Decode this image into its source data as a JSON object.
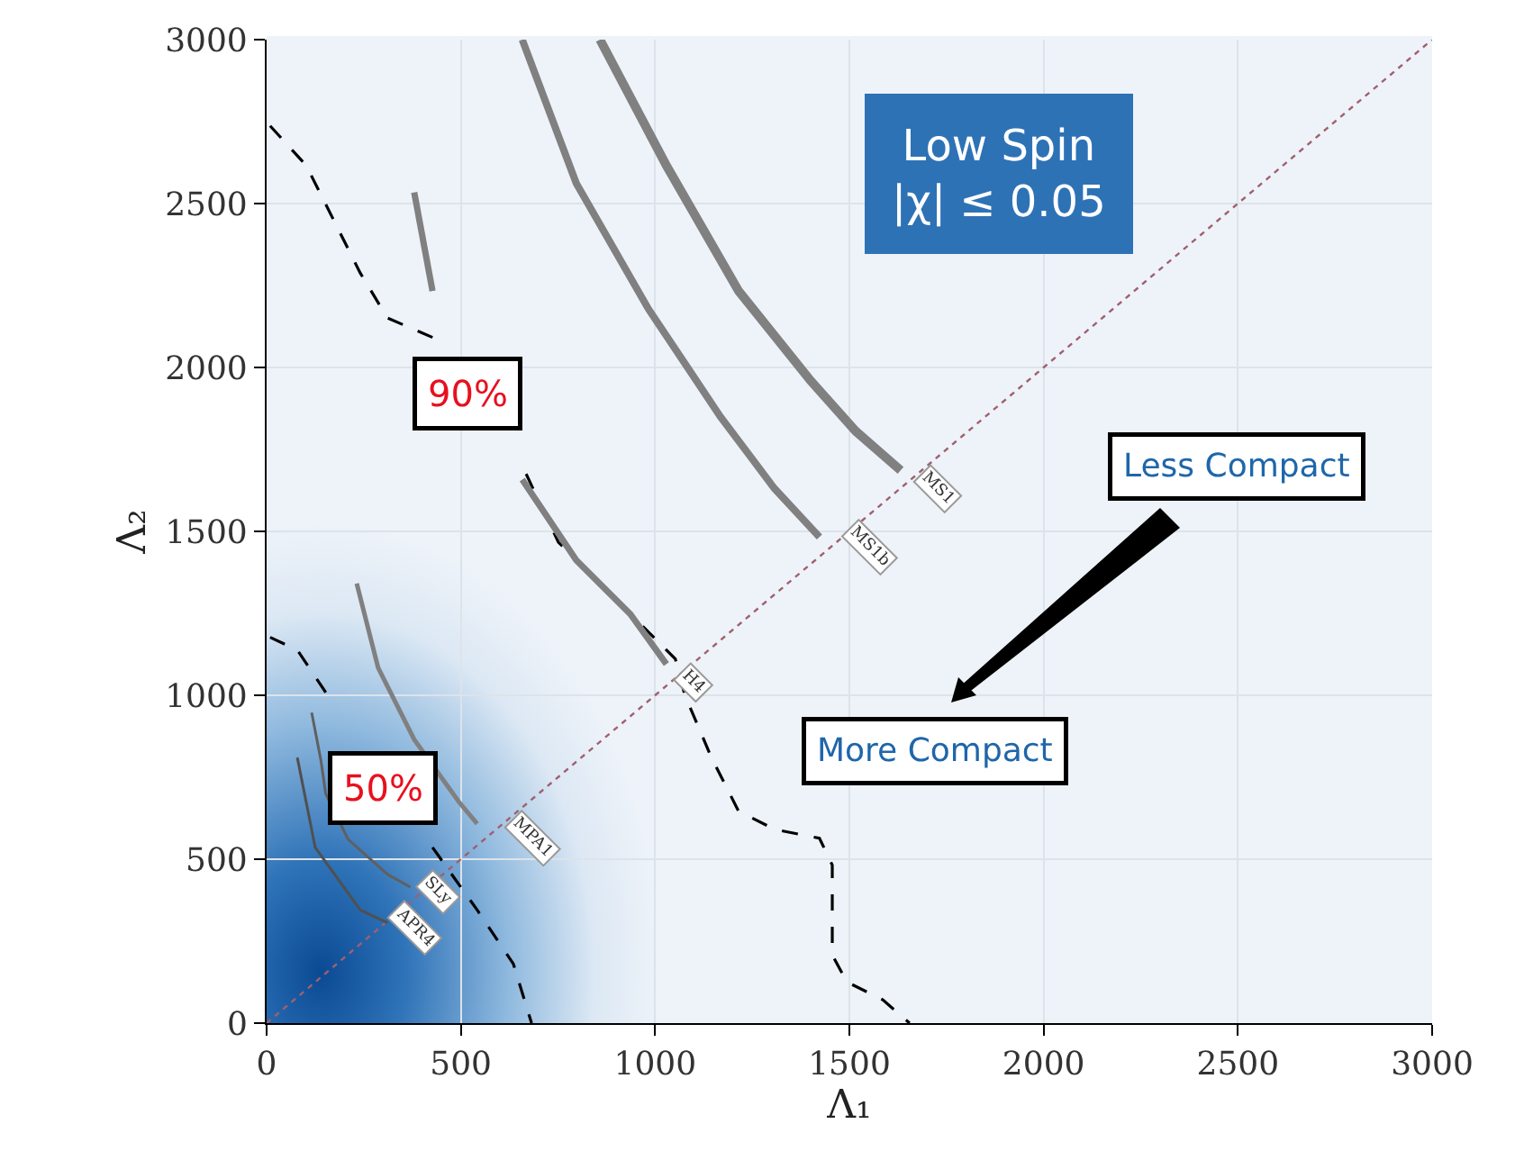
{
  "chart_data": {
    "type": "line",
    "xlabel": "Λ₁",
    "ylabel": "Λ₂",
    "xlim": [
      0,
      3000
    ],
    "ylim": [
      0,
      3000
    ],
    "xticks": [
      0,
      500,
      1000,
      1500,
      2000,
      2500,
      3000
    ],
    "yticks": [
      0,
      500,
      1000,
      1500,
      2000,
      2500,
      3000
    ],
    "grid": true,
    "marker": "none",
    "series": [
      {
        "color": "#a0606e",
        "line_style": "dotted",
        "x": [
          0,
          3000
        ],
        "values": [
          0,
          3000
        ]
      },
      {
        "color": "#000000",
        "line_style": "dashed",
        "x": [
          9,
          102,
          241,
          311,
          450,
          566,
          668,
          751,
          890,
          1052,
          1076,
          1145,
          1215,
          1308,
          1423,
          1456,
          1456,
          1493,
          1586,
          1655
        ],
        "values": [
          2737,
          2616,
          2288,
          2151,
          2080,
          null,
          1675,
          1467,
          1303,
          1111,
          1002,
          810,
          646,
          591,
          564,
          482,
          208,
          126,
          71,
          0
        ]
      },
      {
        "color": "#000000",
        "line_style": "dashed",
        "x": [
          9,
          79,
          172,
          300,
          427,
          542,
          635,
          682
        ],
        "values": [
          1177,
          1138,
          974,
          null,
          536,
          345,
          181,
          0
        ]
      },
      {
        "color": "#808080",
        "line_style": "solid",
        "x": [
          858,
          1029,
          1215,
          1400,
          1516,
          1632
        ],
        "values": [
          3000,
          2616,
          2233,
          1960,
          1806,
          1686
        ]
      },
      {
        "color": "#808080",
        "line_style": "solid",
        "x": [
          658,
          797,
          983,
          1168,
          1307,
          1423
        ],
        "values": [
          3000,
          2562,
          2178,
          1850,
          1631,
          1483
        ]
      },
      {
        "color": "#808080",
        "line_style": "solid",
        "x": [
          380,
          427,
          519,
          658,
          797,
          936,
          1029
        ],
        "values": [
          2534,
          2233,
          null,
          1658,
          1412,
          1248,
          1095
        ]
      },
      {
        "color": "#808080",
        "line_style": "solid",
        "x": [
          232,
          287,
          380,
          496,
          542
        ],
        "values": [
          1341,
          1084,
          865,
          673,
          608
        ]
      },
      {
        "color": "#606060",
        "line_style": "solid",
        "x": [
          116,
          140,
          152,
          210,
          311,
          370
        ],
        "values": [
          947,
          800,
          700,
          560,
          454,
          415
        ]
      },
      {
        "color": "#505050",
        "line_style": "solid",
        "x": [
          79,
          125,
          241,
          311
        ],
        "values": [
          810,
          536,
          345,
          306
        ]
      }
    ],
    "annotations": [
      {
        "text": "MS1",
        "x": 1725,
        "y": 1631
      },
      {
        "text": "MS1b",
        "x": 1553,
        "y": 1450
      },
      {
        "text": "H4",
        "x": 1099,
        "y": 1040
      },
      {
        "text": "MPA1",
        "x": 682,
        "y": 564
      },
      {
        "text": "SLy",
        "x": 440,
        "y": 400
      },
      {
        "text": "APR4",
        "x": 380,
        "y": 290
      },
      "90%",
      "50%",
      "Low Spin\n|χ| ≤ 0.05",
      "Less Compact",
      "More Compact"
    ]
  }
}
